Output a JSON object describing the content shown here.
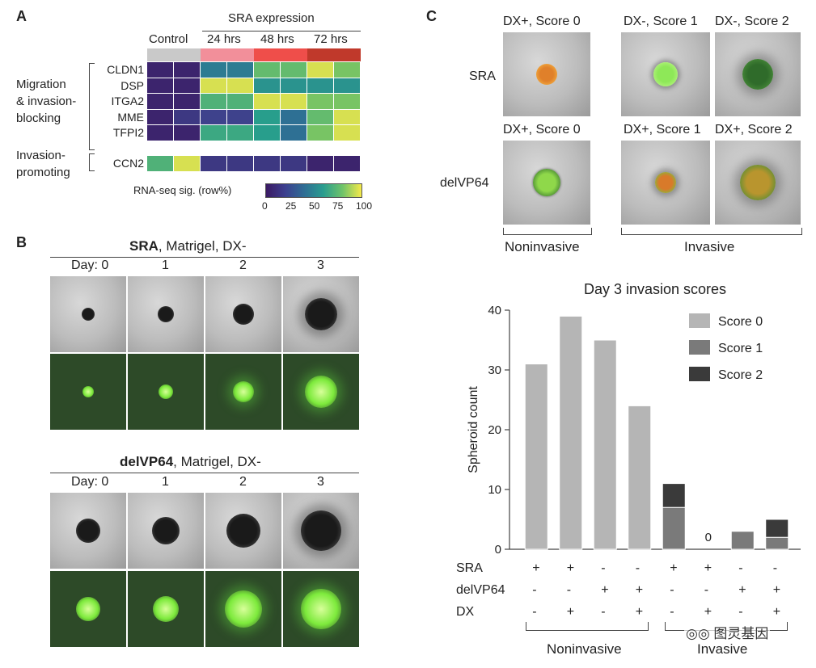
{
  "panel_a": {
    "label": "A",
    "header": "SRA expression",
    "columns": [
      "Control",
      "24 hrs",
      "48 hrs",
      "72 hrs"
    ],
    "group_labels": [
      "Migration\n& invasion-\nblocking",
      "Invasion-\npromoting"
    ],
    "genes": [
      "CLDN1",
      "DSP",
      "ITGA2",
      "MME",
      "TFPI2",
      "CCN2"
    ],
    "colorbar_label": "RNA-seq sig. (row%)",
    "colorbar_ticks": [
      "0",
      "25",
      "50",
      "75",
      "100"
    ],
    "header_colors": [
      "#c9c9c9",
      "#f28f9a",
      "#ef4e4a",
      "#c0392b"
    ],
    "matrix": [
      [
        5,
        5,
        45,
        45,
        75,
        75,
        95,
        80
      ],
      [
        5,
        5,
        95,
        95,
        55,
        55,
        55,
        55
      ],
      [
        5,
        5,
        70,
        70,
        95,
        95,
        80,
        80
      ],
      [
        5,
        15,
        20,
        20,
        60,
        40,
        75,
        95
      ],
      [
        5,
        5,
        65,
        65,
        60,
        40,
        80,
        95
      ],
      [
        70,
        95,
        15,
        15,
        15,
        15,
        5,
        5
      ]
    ]
  },
  "panel_b": {
    "label": "B",
    "blocks": [
      {
        "title_bold": "SRA",
        "title_rest": ", Matrigel, DX-",
        "days": [
          "Day: 0",
          "1",
          "2",
          "3"
        ]
      },
      {
        "title_bold": "delVP64",
        "title_rest": ", Matrigel, DX-",
        "days": [
          "Day: 0",
          "1",
          "2",
          "3"
        ]
      }
    ]
  },
  "panel_c": {
    "label": "C",
    "row_labels": [
      "SRA",
      "delVP64"
    ],
    "image_titles_row1": [
      "DX+, Score 0",
      "DX-, Score 1",
      "DX-, Score 2"
    ],
    "image_titles_row2": [
      "DX+, Score 0",
      "DX+, Score 1",
      "DX+, Score 2"
    ],
    "bracket_labels": [
      "Noninvasive",
      "Invasive"
    ],
    "table_rows": [
      {
        "name": "SRA",
        "symbols": [
          "+",
          "+",
          "-",
          "-",
          "+",
          "+",
          "-",
          "-"
        ]
      },
      {
        "name": "delVP64",
        "symbols": [
          "-",
          "-",
          "+",
          "+",
          "-",
          "-",
          "+",
          "+"
        ]
      },
      {
        "name": "DX",
        "symbols": [
          "-",
          "+",
          "-",
          "+",
          "-",
          "+",
          "-",
          "+"
        ]
      }
    ],
    "bottom_labels": [
      "Noninvasive",
      "Invasive"
    ],
    "watermark": "图灵基因"
  },
  "chart_data": {
    "type": "bar",
    "title": "Day 3 invasion scores",
    "ylabel": "Spheroid count",
    "xlabel": "",
    "ylim": [
      0,
      40
    ],
    "yticks": [
      0,
      10,
      20,
      30,
      40
    ],
    "categories": [
      "1",
      "2",
      "3",
      "4",
      "5",
      "6",
      "7",
      "8"
    ],
    "series": [
      {
        "name": "Score 0",
        "color": "#b5b5b5",
        "values": [
          31,
          39,
          35,
          24,
          0,
          0,
          0,
          0
        ]
      },
      {
        "name": "Score 1",
        "color": "#7a7a7a",
        "values": [
          0,
          0,
          0,
          0,
          7,
          0,
          3,
          2
        ]
      },
      {
        "name": "Score 2",
        "color": "#3a3a3a",
        "values": [
          0,
          0,
          0,
          0,
          4,
          0,
          0,
          3
        ]
      }
    ],
    "annotations": [
      {
        "category": "6",
        "text": "0"
      }
    ],
    "legend_position": "top-right"
  }
}
